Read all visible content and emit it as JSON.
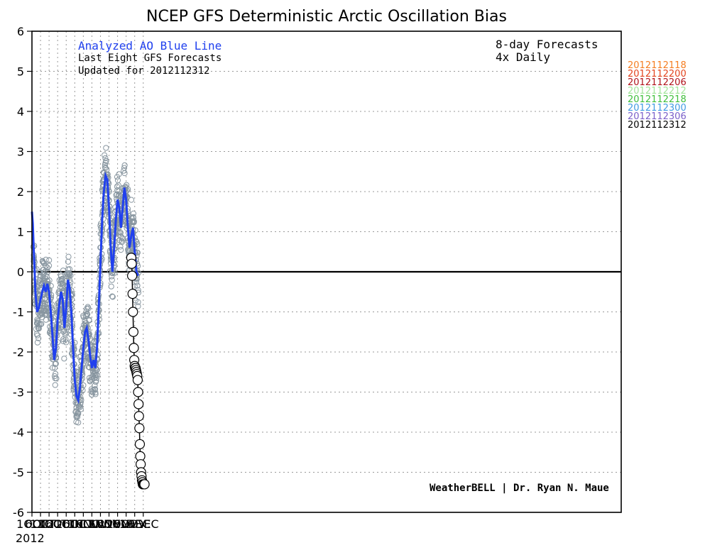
{
  "chart_data": {
    "type": "line",
    "title": "NCEP GFS Deterministic Arctic Oscillation Bias",
    "ylim": [
      -6,
      6
    ],
    "y_ticks": [
      "6",
      "5",
      "4",
      "3",
      "2",
      "1",
      "0",
      "-1",
      "-2",
      "-3",
      "-4",
      "-5",
      "-6"
    ],
    "x_tick_labels": [
      "1OCT",
      "6OCT",
      "11OCT",
      "16OCT",
      "21OCT",
      "26OCT",
      "1NOV",
      "6NOV",
      "11NOV",
      "16NOV",
      "21NOV",
      "26NOV",
      "1DEC",
      "6DEC"
    ],
    "x_year_label": "2012",
    "grid": true,
    "annotations": {
      "analyzed": "Analyzed AO Blue Line",
      "last_eight": "Last Eight GFS Forecasts",
      "updated": "Updated for 2012112312",
      "forecasts": "8-day Forecasts",
      "daily": "4x Daily",
      "credit": "WeatherBELL | Dr. Ryan N. Maue"
    },
    "legend": [
      {
        "label": "2012112118",
        "color": "#f57d20"
      },
      {
        "label": "2012112200",
        "color": "#e3431d"
      },
      {
        "label": "2012112206",
        "color": "#b0121a"
      },
      {
        "label": "2012112212",
        "color": "#a3e59b"
      },
      {
        "label": "2012112218",
        "color": "#3fbf3b"
      },
      {
        "label": "2012112300",
        "color": "#3f9ae3"
      },
      {
        "label": "2012112306",
        "color": "#7a5fc9"
      },
      {
        "label": "2012112312",
        "color": "#000000"
      }
    ],
    "series": [
      {
        "name": "Analyzed AO Blue Line",
        "color": "#2040ee",
        "day": [
          0,
          0.5,
          1,
          1.5,
          2,
          3,
          4,
          5,
          6,
          7,
          8,
          9,
          10,
          11,
          12,
          13,
          14,
          15,
          16,
          17,
          18,
          19,
          20,
          21,
          22,
          23,
          24,
          25,
          26,
          27,
          28,
          29,
          30,
          31,
          32,
          33,
          34,
          35,
          36,
          37,
          38,
          39,
          40,
          41,
          42,
          43,
          44,
          45,
          46,
          47,
          48,
          49,
          50,
          51,
          52,
          53,
          54,
          55,
          56,
          57,
          58,
          59,
          60,
          61,
          62
        ],
        "values": [
          1.5,
          1.2,
          0.6,
          0.1,
          -0.5,
          -1.0,
          -0.9,
          -0.7,
          -0.5,
          -0.35,
          -0.5,
          -0.3,
          -0.5,
          -1.0,
          -1.6,
          -2.2,
          -1.9,
          -1.2,
          -0.8,
          -0.5,
          -0.7,
          -1.4,
          -0.9,
          -0.2,
          -0.4,
          -1.0,
          -1.9,
          -2.7,
          -3.1,
          -3.2,
          -2.9,
          -2.4,
          -1.9,
          -1.5,
          -1.4,
          -1.7,
          -2.1,
          -2.4,
          -2.2,
          -2.4,
          -1.9,
          -0.9,
          0.2,
          1.3,
          2.0,
          2.4,
          2.3,
          1.6,
          0.6,
          0.0,
          0.6,
          1.3,
          1.8,
          1.6,
          1.1,
          1.6,
          2.1,
          1.8,
          1.1,
          0.6,
          0.9,
          1.1,
          0.5,
          0.0,
          -0.1
        ]
      },
      {
        "name": "2012112312",
        "color": "#000000",
        "day": [
          58,
          58.25,
          58.5,
          58.75,
          59,
          59.25,
          59.5,
          59.75,
          60,
          60.25,
          60.5,
          60.75,
          61,
          61.25,
          61.5,
          61.75,
          62,
          62.25,
          62.5,
          62.75,
          63,
          63.25,
          63.5,
          63.75,
          64,
          64.25,
          64.5,
          64.75,
          65,
          65.25,
          65.5,
          65.75
        ],
        "values": [
          0.35,
          0.2,
          -0.1,
          -0.55,
          -1.0,
          -1.5,
          -1.9,
          -2.2,
          -2.35,
          -2.4,
          -2.4,
          -2.45,
          -2.5,
          -2.55,
          -2.6,
          -2.7,
          -3.0,
          -3.3,
          -3.6,
          -3.9,
          -4.3,
          -4.6,
          -4.8,
          -5.0,
          -5.1,
          -5.2,
          -5.25,
          -5.3,
          -5.3,
          -5.3,
          -5.3,
          -5.3
        ]
      }
    ]
  }
}
